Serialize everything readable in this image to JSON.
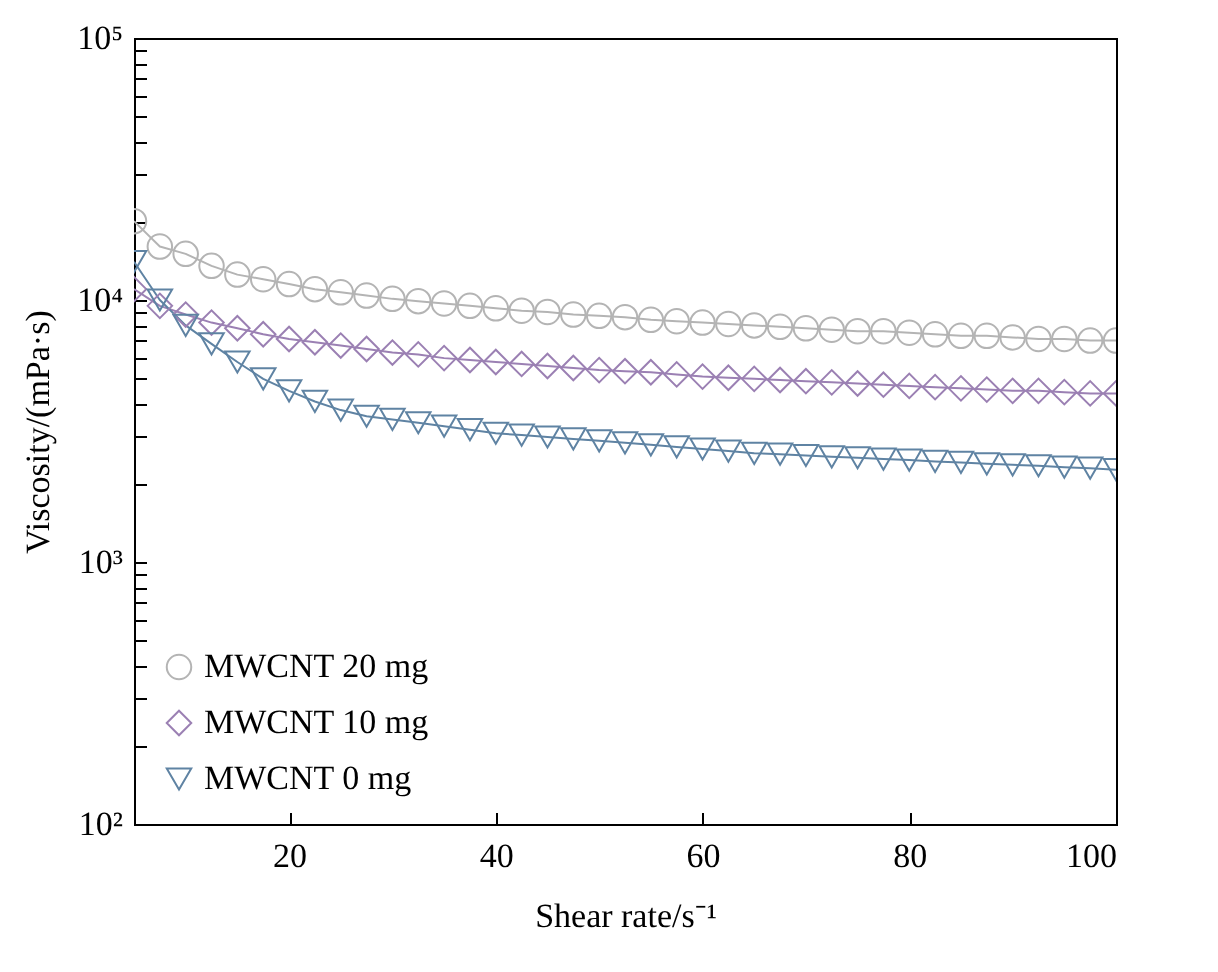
{
  "chart_data": {
    "type": "line",
    "xlabel": "Shear rate/s⁻¹",
    "ylabel": "Viscosity/(mPa·s)",
    "log": "y",
    "grid": false,
    "legend": "bottom left",
    "line_style": "solid",
    "x": [
      5,
      7.5,
      10,
      12.5,
      15,
      17.5,
      20,
      22.5,
      25,
      27.5,
      30,
      32.5,
      35,
      37.5,
      40,
      42.5,
      45,
      47.5,
      50,
      52.5,
      55,
      57.5,
      60,
      62.5,
      65,
      67.5,
      70,
      72.5,
      75,
      77.5,
      80,
      82.5,
      85,
      87.5,
      90,
      92.5,
      95,
      97.5,
      100
    ],
    "xlim": [
      5,
      100
    ],
    "xticks": [
      20,
      40,
      60,
      80,
      100
    ],
    "ylim": [
      100,
      100000
    ],
    "yticks": [
      {
        "value": 100,
        "label": "10²"
      },
      {
        "value": 200,
        "label": null
      },
      {
        "value": 300,
        "label": null
      },
      {
        "value": 400,
        "label": null
      },
      {
        "value": 500,
        "label": null
      },
      {
        "value": 600,
        "label": null
      },
      {
        "value": 700,
        "label": null
      },
      {
        "value": 800,
        "label": null
      },
      {
        "value": 900,
        "label": null
      },
      {
        "value": 1000,
        "label": "10³"
      },
      {
        "value": 2000,
        "label": null
      },
      {
        "value": 3000,
        "label": null
      },
      {
        "value": 4000,
        "label": null
      },
      {
        "value": 5000,
        "label": null
      },
      {
        "value": 6000,
        "label": null
      },
      {
        "value": 7000,
        "label": null
      },
      {
        "value": 8000,
        "label": null
      },
      {
        "value": 9000,
        "label": null
      },
      {
        "value": 10000,
        "label": "10⁴"
      },
      {
        "value": 20000,
        "label": null
      },
      {
        "value": 30000,
        "label": null
      },
      {
        "value": 40000,
        "label": null
      },
      {
        "value": 50000,
        "label": null
      },
      {
        "value": 60000,
        "label": null
      },
      {
        "value": 70000,
        "label": null
      },
      {
        "value": 80000,
        "label": null
      },
      {
        "value": 90000,
        "label": null
      },
      {
        "value": 100000,
        "label": "10⁵"
      }
    ],
    "series": [
      {
        "name": "MWCNT 20 mg",
        "color": "#b4b4b4",
        "marker": "circle",
        "values": [
          20000,
          16000,
          15000,
          13500,
          12500,
          12000,
          11500,
          11000,
          10700,
          10400,
          10100,
          9900,
          9700,
          9500,
          9300,
          9100,
          9000,
          8800,
          8700,
          8600,
          8400,
          8300,
          8200,
          8100,
          8000,
          7900,
          7800,
          7700,
          7600,
          7600,
          7500,
          7400,
          7300,
          7300,
          7200,
          7100,
          7100,
          7000,
          7000
        ]
      },
      {
        "name": "MWCNT 10 mg",
        "color": "#9b80b3",
        "marker": "diamond",
        "values": [
          11000,
          9500,
          8800,
          8200,
          7800,
          7400,
          7100,
          6900,
          6700,
          6500,
          6300,
          6200,
          6000,
          5900,
          5800,
          5700,
          5600,
          5500,
          5400,
          5350,
          5300,
          5200,
          5100,
          5050,
          5000,
          4950,
          4900,
          4850,
          4800,
          4750,
          4700,
          4650,
          4600,
          4550,
          4500,
          4500,
          4450,
          4400,
          4400
        ]
      },
      {
        "name": "MWCNT 0 mg",
        "color": "#5f83a3",
        "marker": "triangle",
        "values": [
          14000,
          10000,
          8000,
          6800,
          5800,
          5000,
          4500,
          4100,
          3800,
          3600,
          3500,
          3400,
          3300,
          3200,
          3100,
          3050,
          3000,
          2950,
          2900,
          2850,
          2800,
          2750,
          2700,
          2650,
          2600,
          2580,
          2550,
          2520,
          2500,
          2470,
          2450,
          2420,
          2400,
          2370,
          2350,
          2330,
          2300,
          2280,
          2250
        ]
      }
    ]
  }
}
